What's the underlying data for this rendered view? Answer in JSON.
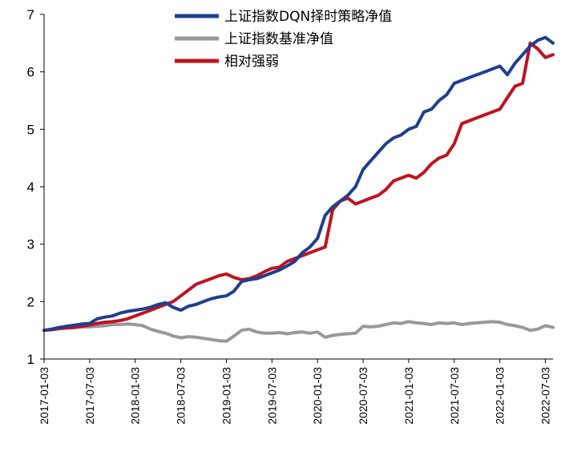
{
  "chart_data": {
    "type": "line",
    "title": "",
    "xlabel": "",
    "ylabel": "",
    "ylim": [
      1,
      7
    ],
    "yticks": [
      1,
      2,
      3,
      4,
      5,
      6,
      7
    ],
    "ytick_labels": [
      "1",
      "2",
      "3",
      "4",
      "5",
      "6",
      "7"
    ],
    "x_tick_labels": [
      "2017-01-03",
      "2017-07-03",
      "2018-01-03",
      "2018-07-03",
      "2019-01-03",
      "2019-07-03",
      "2020-01-03",
      "2020-07-03",
      "2021-01-03",
      "2021-07-03",
      "2022-01-03",
      "2022-07-03"
    ],
    "x_tick_index": [
      0,
      6,
      12,
      18,
      24,
      30,
      36,
      42,
      48,
      54,
      60,
      66
    ],
    "x_range": [
      0,
      67
    ],
    "legend_position": "top-center",
    "series": [
      {
        "name": "上证指数DQN择时策略净值",
        "color": "#1f3f8f",
        "values": [
          1.5,
          1.52,
          1.55,
          1.57,
          1.59,
          1.61,
          1.62,
          1.7,
          1.73,
          1.75,
          1.8,
          1.83,
          1.85,
          1.87,
          1.9,
          1.95,
          1.98,
          1.9,
          1.85,
          1.92,
          1.95,
          2.0,
          2.05,
          2.08,
          2.1,
          2.18,
          2.35,
          2.38,
          2.4,
          2.45,
          2.5,
          2.55,
          2.62,
          2.7,
          2.85,
          2.95,
          3.1,
          3.5,
          3.65,
          3.75,
          3.85,
          4.0,
          4.3,
          4.45,
          4.6,
          4.75,
          4.85,
          4.9,
          5.0,
          5.05,
          5.3,
          5.35,
          5.5,
          5.6,
          5.8,
          5.85,
          5.9,
          5.95,
          6.0,
          6.05,
          6.1,
          5.95,
          6.15,
          6.3,
          6.45,
          6.55,
          6.6,
          6.5
        ]
      },
      {
        "name": "上证指数基准净值",
        "color": "#999999",
        "values": [
          1.5,
          1.52,
          1.53,
          1.54,
          1.55,
          1.56,
          1.56,
          1.57,
          1.58,
          1.6,
          1.6,
          1.61,
          1.6,
          1.58,
          1.52,
          1.48,
          1.45,
          1.4,
          1.37,
          1.39,
          1.38,
          1.36,
          1.34,
          1.32,
          1.31,
          1.4,
          1.5,
          1.52,
          1.47,
          1.45,
          1.45,
          1.46,
          1.44,
          1.46,
          1.47,
          1.45,
          1.47,
          1.38,
          1.41,
          1.43,
          1.44,
          1.45,
          1.57,
          1.56,
          1.57,
          1.6,
          1.63,
          1.62,
          1.65,
          1.63,
          1.62,
          1.6,
          1.63,
          1.62,
          1.63,
          1.6,
          1.62,
          1.63,
          1.64,
          1.65,
          1.64,
          1.6,
          1.58,
          1.55,
          1.5,
          1.52,
          1.58,
          1.55
        ]
      },
      {
        "name": "相对强弱",
        "color": "#c0121f",
        "values": [
          1.5,
          1.51,
          1.53,
          1.54,
          1.55,
          1.57,
          1.59,
          1.62,
          1.64,
          1.65,
          1.67,
          1.7,
          1.75,
          1.8,
          1.85,
          1.9,
          1.95,
          2.0,
          2.1,
          2.2,
          2.3,
          2.35,
          2.4,
          2.45,
          2.48,
          2.42,
          2.38,
          2.4,
          2.45,
          2.52,
          2.58,
          2.6,
          2.7,
          2.75,
          2.8,
          2.85,
          2.9,
          2.95,
          3.6,
          3.75,
          3.8,
          3.7,
          3.75,
          3.8,
          3.85,
          3.95,
          4.1,
          4.15,
          4.2,
          4.15,
          4.25,
          4.4,
          4.5,
          4.55,
          4.75,
          5.1,
          5.15,
          5.2,
          5.25,
          5.3,
          5.35,
          5.55,
          5.75,
          5.8,
          6.5,
          6.4,
          6.25,
          6.3
        ]
      }
    ]
  }
}
